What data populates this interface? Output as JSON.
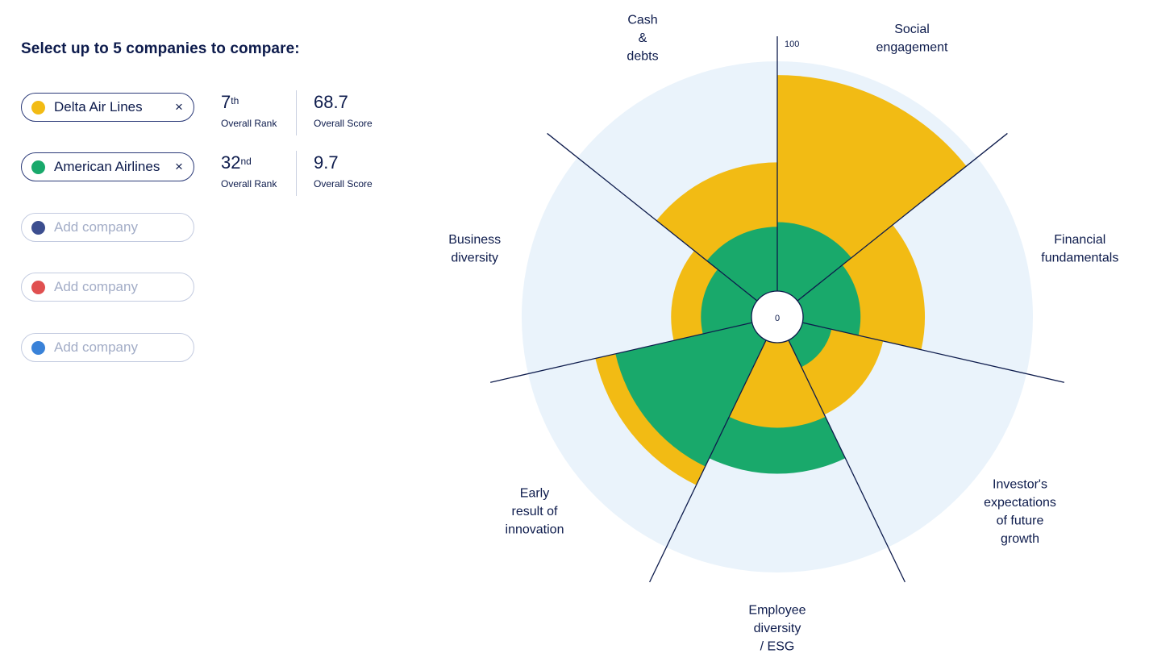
{
  "header": {
    "title": "Select up to 5 companies to compare:"
  },
  "colors": {
    "delta": "#f2bb14",
    "american": "#19a96b",
    "slot3": "#3c4e8f",
    "slot4": "#e05050",
    "slot5": "#3a82d8",
    "background_disc": "#eaf3fb",
    "axis_line": "#0d1b4c"
  },
  "companies": [
    {
      "name": "Delta Air Lines",
      "color": "#f2bb14",
      "close_icon": "×",
      "rank_number": "7",
      "rank_suffix": "th",
      "rank_label": "Overall Rank",
      "score": "68.7",
      "score_label": "Overall Score"
    },
    {
      "name": "American Airlines",
      "color": "#19a96b",
      "close_icon": "×",
      "rank_number": "32",
      "rank_suffix": "nd",
      "rank_label": "Overall Rank",
      "score": "9.7",
      "score_label": "Overall Score"
    }
  ],
  "empty_slots": [
    {
      "placeholder": "Add company",
      "color": "#3c4e8f"
    },
    {
      "placeholder": "Add company",
      "color": "#e05050"
    },
    {
      "placeholder": "Add company",
      "color": "#3a82d8"
    }
  ],
  "chart_data": {
    "type": "polar-area",
    "title": "",
    "rlim": [
      0,
      100
    ],
    "tick_labels": {
      "min": "0",
      "max": "100"
    },
    "categories": [
      [
        "Social",
        "engagement"
      ],
      [
        "Financial",
        "fundamentals"
      ],
      [
        "Investor's",
        "expectations",
        "of future",
        "growth"
      ],
      [
        "Employee",
        "diversity",
        "/ ESG"
      ],
      [
        "Early",
        "result of",
        "innovation"
      ],
      [
        "Business",
        "diversity"
      ],
      [
        "Cash",
        "&",
        "debts"
      ]
    ],
    "series": [
      {
        "name": "Delta Air Lines",
        "color": "#f2bb14",
        "values": [
          94,
          53,
          36,
          37,
          70,
          35,
          56
        ]
      },
      {
        "name": "American Airlines",
        "color": "#19a96b",
        "values": [
          30,
          25,
          13,
          57,
          61,
          22,
          28
        ]
      }
    ]
  }
}
